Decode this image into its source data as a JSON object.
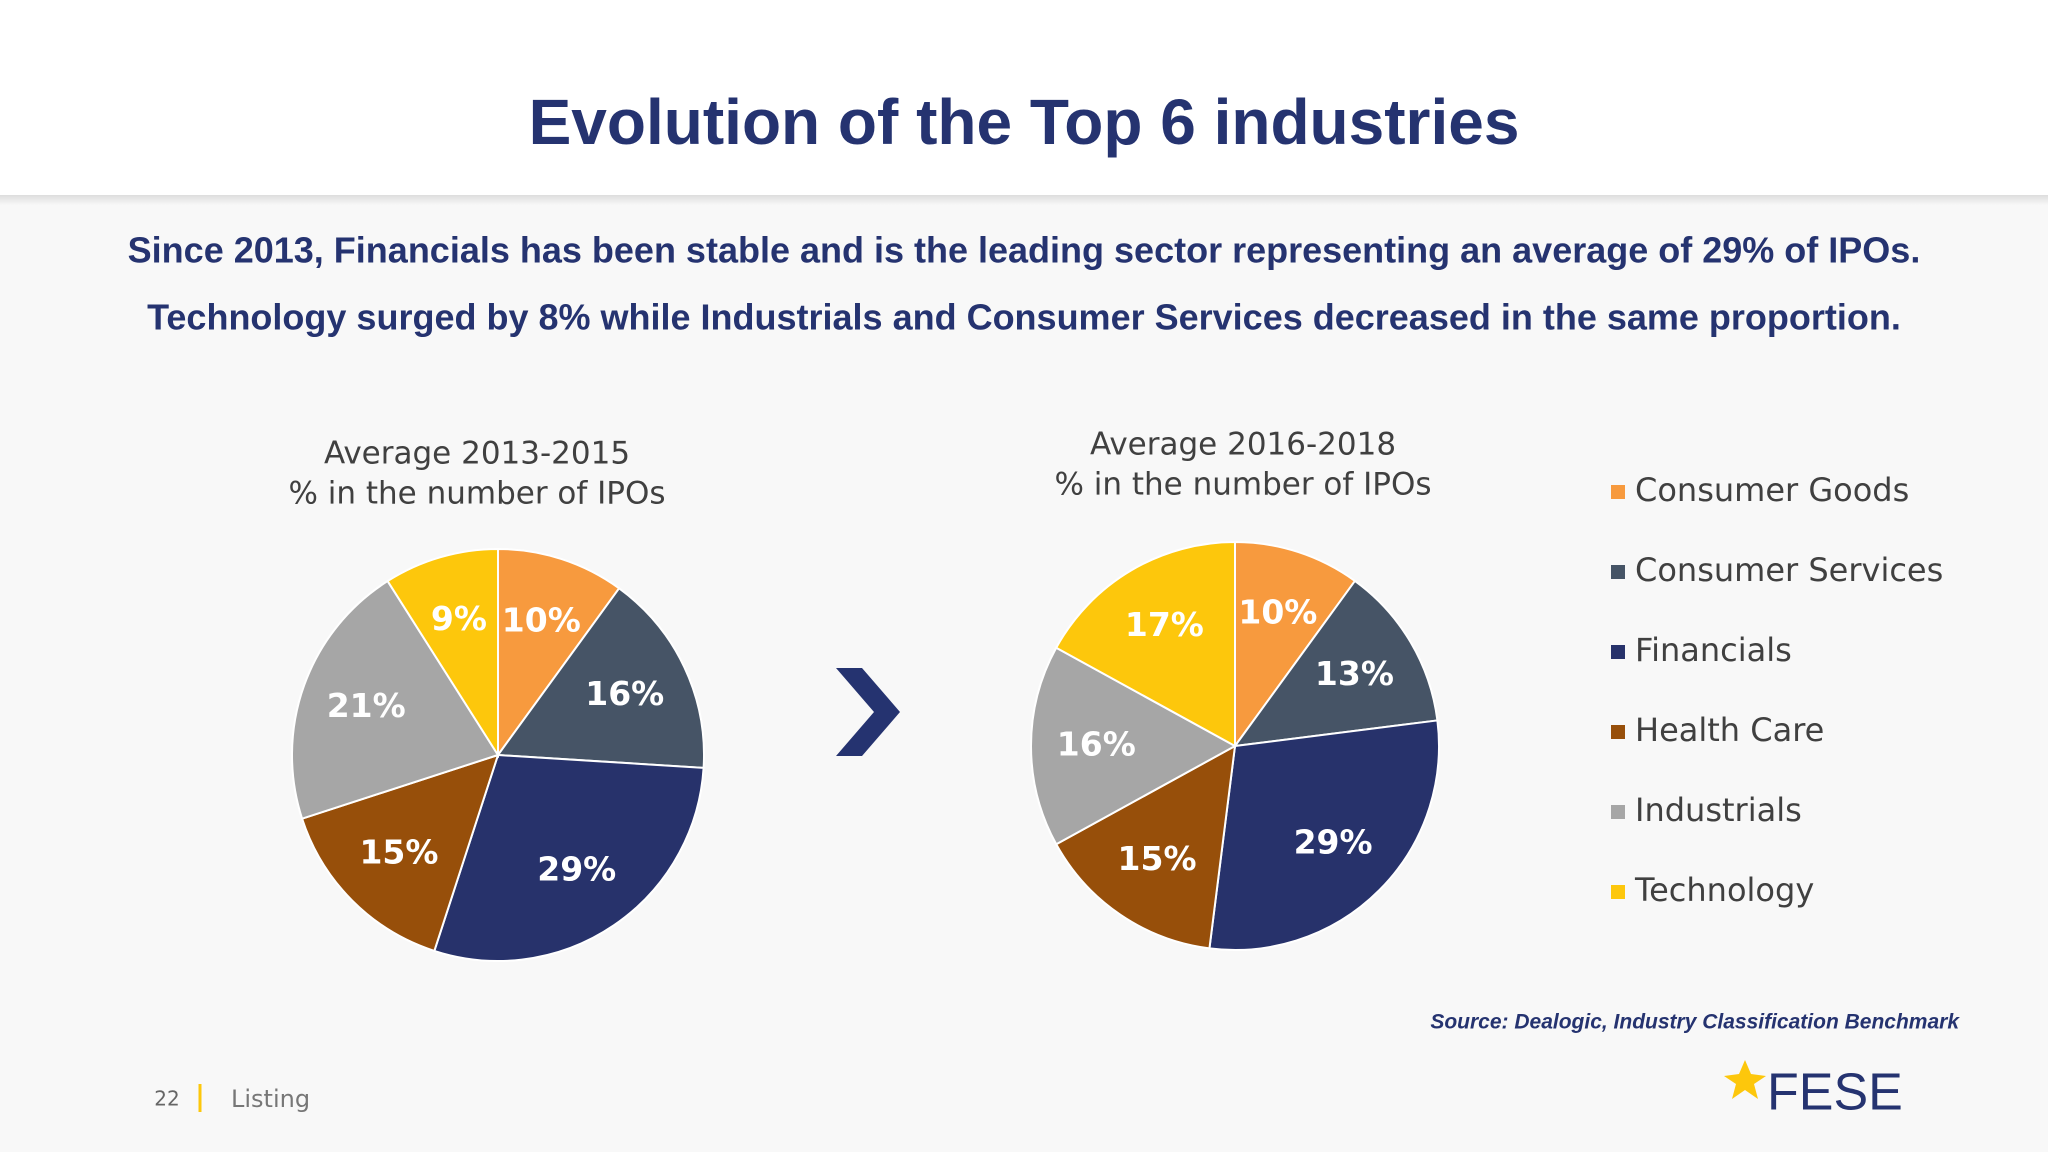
{
  "header": {
    "title": "Evolution of the Top 6 industries",
    "lines": [
      "Since 2013, Financials has been stable and is the leading sector representing an average of 29% of IPOs.",
      "Technology surged by 8% while Industrials and Consumer Services decreased in the same proportion."
    ]
  },
  "chart_data": [
    {
      "type": "pie",
      "title": "Average 2013-2015",
      "subtitle": "% in the number of IPOs",
      "categories": [
        "Consumer Goods",
        "Consumer Services",
        "Financials",
        "Health Care",
        "Industrials",
        "Technology"
      ],
      "values": [
        10,
        16,
        29,
        15,
        21,
        9
      ],
      "value_labels": [
        "10%",
        "16%",
        "29%",
        "15%",
        "21%",
        "9%"
      ],
      "colors": [
        "#f79a3e",
        "#465466",
        "#27326b",
        "#974f0a",
        "#a6a6a6",
        "#fdc70c"
      ]
    },
    {
      "type": "pie",
      "title": "Average 2016-2018",
      "subtitle": "% in the number of IPOs",
      "categories": [
        "Consumer Goods",
        "Consumer Services",
        "Financials",
        "Health Care",
        "Industrials",
        "Technology"
      ],
      "values": [
        10,
        13,
        29,
        15,
        16,
        17
      ],
      "value_labels": [
        "10%",
        "13%",
        "29%",
        "15%",
        "16%",
        "17%"
      ],
      "colors": [
        "#f79a3e",
        "#465466",
        "#27326b",
        "#974f0a",
        "#a6a6a6",
        "#fdc70c"
      ],
      "legend": "right"
    }
  ],
  "footer": {
    "source": "Source: Dealogic, Industry Classification Benchmark",
    "page": "22",
    "section": "Listing",
    "logo": "FESE"
  }
}
